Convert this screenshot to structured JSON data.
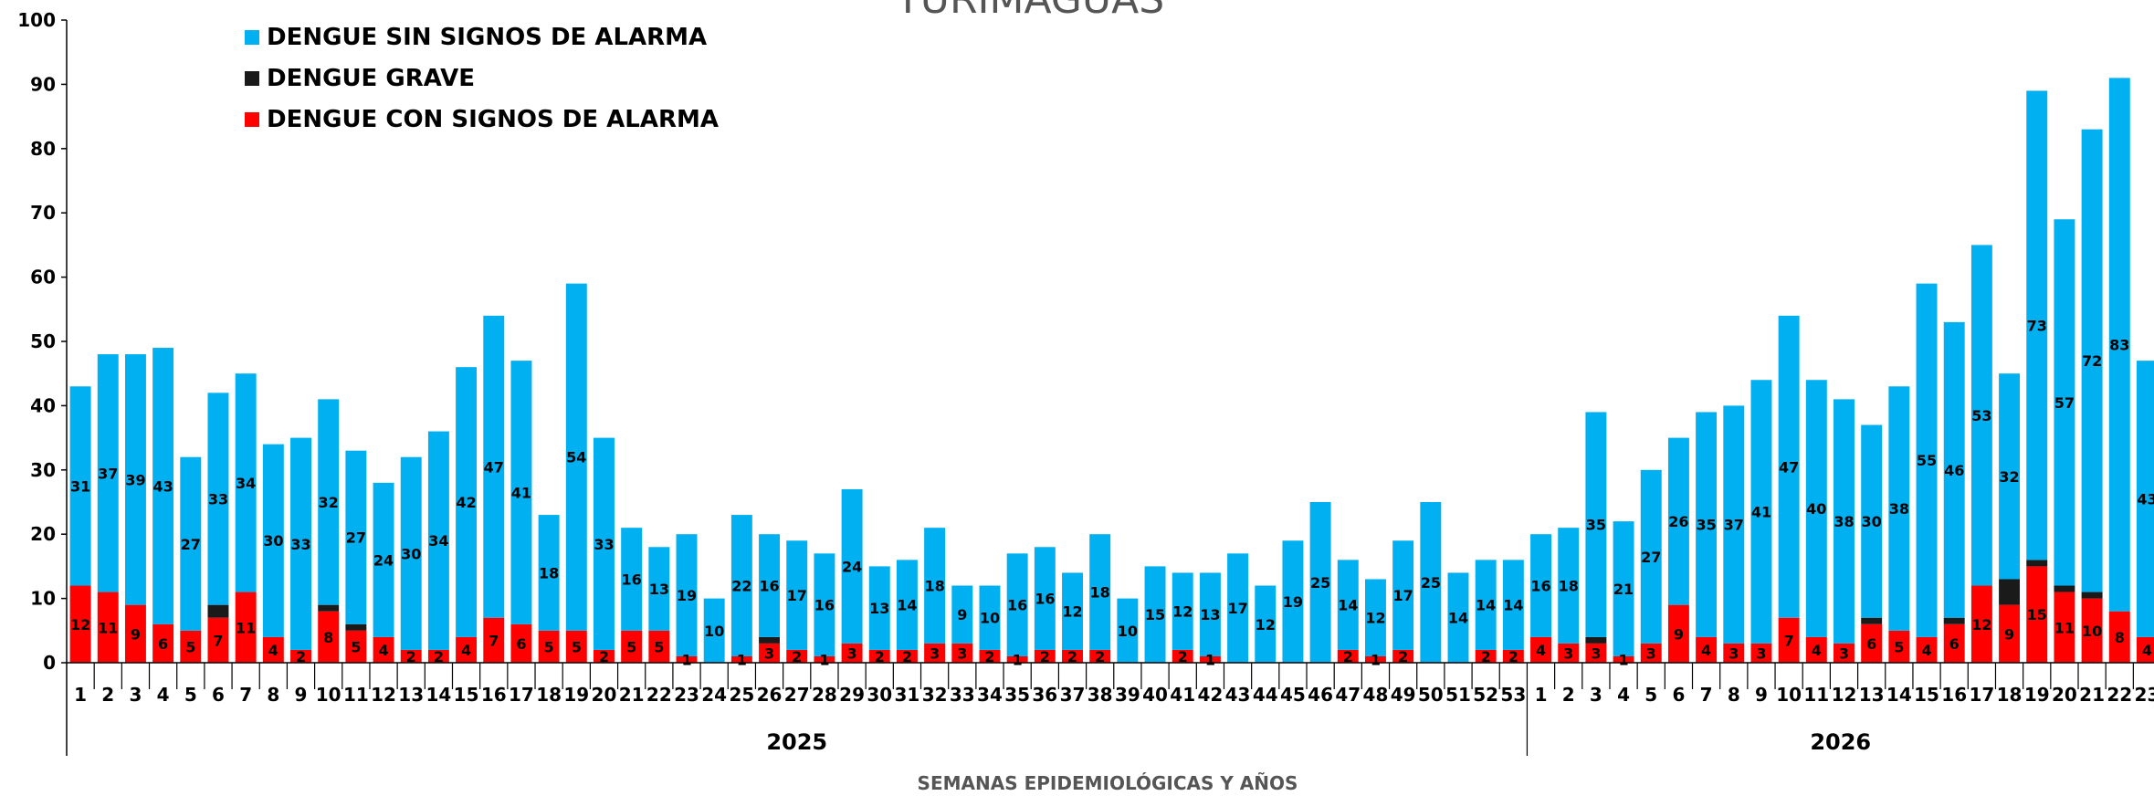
{
  "chart_data": {
    "type": "bar",
    "stacked": true,
    "title": "YURIMAGUAS",
    "xlabel": "SEMANAS EPIDEMIOLÓGICAS Y AÑOS",
    "ylabel": "",
    "ylim": [
      0,
      100
    ],
    "yticks": [
      0,
      10,
      20,
      30,
      40,
      50,
      60,
      70,
      80,
      90,
      100
    ],
    "grid": false,
    "legend_position": "top-left",
    "colors": {
      "sin_signos": "#00B0F0",
      "grave": "#1A1A1A",
      "con_signos": "#FF0000"
    },
    "legend": [
      {
        "key": "sin_signos",
        "label": "DENGUE SIN SIGNOS DE ALARMA"
      },
      {
        "key": "grave",
        "label": "DENGUE GRAVE"
      },
      {
        "key": "con_signos",
        "label": "DENGUE CON SIGNOS DE ALARMA"
      }
    ],
    "groups": [
      {
        "year": "2025",
        "weeks": [
          "1",
          "2",
          "3",
          "4",
          "5",
          "6",
          "7",
          "8",
          "9",
          "10",
          "11",
          "12",
          "13",
          "14",
          "15",
          "16",
          "17",
          "18",
          "19",
          "20",
          "21",
          "22",
          "23",
          "24",
          "25",
          "26",
          "27",
          "28",
          "29",
          "30",
          "31",
          "32",
          "33",
          "34",
          "35",
          "36",
          "37",
          "38",
          "39",
          "40",
          "41",
          "42",
          "43",
          "44",
          "45",
          "46",
          "47",
          "48",
          "49",
          "50",
          "51",
          "52",
          "53"
        ],
        "con_signos": [
          12,
          11,
          9,
          6,
          5,
          7,
          11,
          4,
          2,
          8,
          5,
          4,
          2,
          2,
          4,
          7,
          6,
          5,
          5,
          2,
          5,
          5,
          1,
          0,
          1,
          3,
          2,
          1,
          3,
          2,
          2,
          3,
          3,
          2,
          1,
          2,
          2,
          2,
          0,
          0,
          2,
          1,
          0,
          0,
          0,
          0,
          2,
          1,
          2,
          0,
          0,
          2,
          2
        ],
        "grave": [
          0,
          0,
          0,
          0,
          0,
          2,
          0,
          0,
          0,
          1,
          1,
          0,
          0,
          0,
          0,
          0,
          0,
          0,
          0,
          0,
          0,
          0,
          0,
          0,
          0,
          1,
          0,
          0,
          0,
          0,
          0,
          0,
          0,
          0,
          0,
          0,
          0,
          0,
          0,
          0,
          0,
          0,
          0,
          0,
          0,
          0,
          0,
          0,
          0,
          0,
          0,
          0,
          0
        ],
        "sin_signos": [
          31,
          37,
          39,
          43,
          27,
          33,
          34,
          30,
          33,
          32,
          27,
          24,
          30,
          34,
          42,
          47,
          41,
          18,
          54,
          33,
          16,
          13,
          19,
          10,
          22,
          16,
          17,
          16,
          24,
          13,
          14,
          18,
          9,
          10,
          16,
          16,
          12,
          18,
          10,
          15,
          12,
          13,
          17,
          12,
          19,
          25,
          14,
          12,
          17,
          25,
          14,
          14,
          14
        ]
      },
      {
        "year": "2026",
        "weeks": [
          "1",
          "2",
          "3",
          "4",
          "5",
          "6",
          "7",
          "8",
          "9",
          "10",
          "11",
          "12",
          "13",
          "14",
          "15",
          "16",
          "17",
          "18",
          "19",
          "20",
          "21",
          "22",
          "23"
        ],
        "con_signos": [
          4,
          3,
          3,
          1,
          3,
          9,
          4,
          3,
          3,
          7,
          4,
          3,
          6,
          5,
          4,
          6,
          12,
          9,
          15,
          11,
          10,
          8,
          4
        ],
        "grave": [
          0,
          0,
          1,
          0,
          0,
          0,
          0,
          0,
          0,
          0,
          0,
          0,
          1,
          0,
          0,
          1,
          0,
          4,
          1,
          1,
          1,
          0,
          0
        ],
        "sin_signos": [
          16,
          18,
          35,
          21,
          27,
          26,
          35,
          37,
          41,
          47,
          40,
          38,
          30,
          38,
          55,
          46,
          53,
          32,
          73,
          57,
          72,
          83,
          43
        ]
      }
    ]
  }
}
